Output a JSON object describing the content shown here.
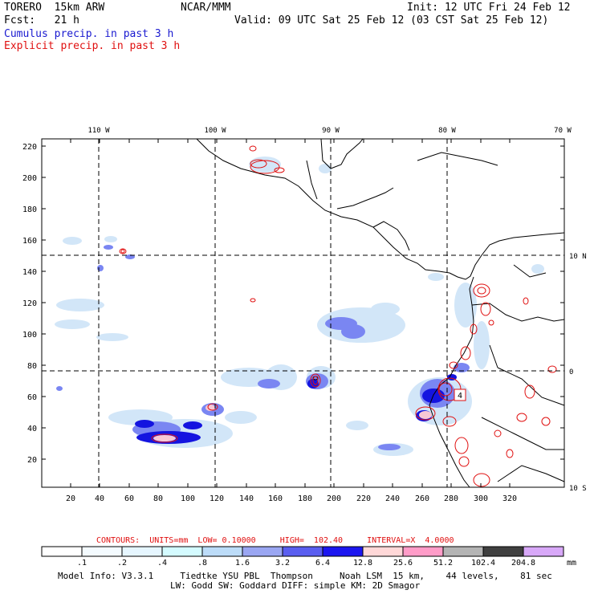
{
  "header": {
    "model_name": "TORERO  15km ARW",
    "org": "NCAR/MMM",
    "init": "Init: 12 UTC Fri 24 Feb 12",
    "fcst": "Fcst:   21 h",
    "valid": "Valid: 09 UTC Sat 25 Feb 12 (03 CST Sat 25 Feb 12)",
    "field1": "Cumulus precip. in past 3 h",
    "field2": "Explicit precip. in past 3 h"
  },
  "map": {
    "lon_labels": [
      "110 W",
      "100 W",
      "90 W",
      "80 W",
      "70 W"
    ],
    "lat_labels": [
      "10 N",
      "0",
      "10 S"
    ],
    "y_ticks": [
      "220",
      "200",
      "180",
      "160",
      "140",
      "120",
      "100",
      "80",
      "60",
      "40",
      "20"
    ],
    "x_ticks": [
      "20",
      "40",
      "60",
      "80",
      "100",
      "120",
      "140",
      "160",
      "180",
      "200",
      "220",
      "240",
      "260",
      "280",
      "300",
      "320"
    ],
    "annotation": "4",
    "colors": {
      "coast": "#000000",
      "explicit": "#e01010",
      "cumulus_light": "#cfe3f7",
      "cumulus_mid": "#6a78f0",
      "cumulus_dark": "#1010e0",
      "grid": "#000000"
    }
  },
  "contour_info": {
    "label": "CONTOURS:  UNITS=mm  LOW= 0.10000     HIGH=  102.40     INTERVAL=X  4.0000"
  },
  "colorbar": {
    "colors": [
      "#ffffff",
      "#f4fbff",
      "#e6f6ff",
      "#d4fbff",
      "#bcdcf8",
      "#9aa6f2",
      "#5a5ef0",
      "#1c16f0",
      "#ffd8d8",
      "#ff9cc8",
      "#b4b4b4",
      "#404040",
      "#d8a8f8"
    ],
    "labels": [
      ".1",
      ".2",
      ".4",
      ".8",
      "1.6",
      "3.2",
      "6.4",
      "12.8",
      "25.6",
      "51.2",
      "102.4",
      "204.8"
    ],
    "units": "mm"
  },
  "footer": {
    "line1": "Model Info: V3.3.1     Tiedtke YSU PBL  Thompson     Noah LSM  15 km,    44 levels,    81 sec",
    "line2": "LW: Godd SW: Goddard DIFF: simple KM: 2D Smagor"
  }
}
